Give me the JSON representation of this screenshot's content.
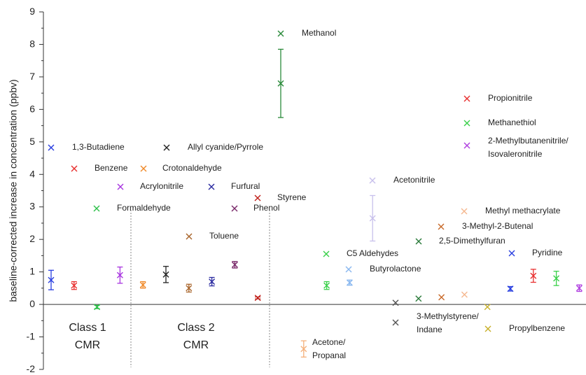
{
  "chart_data": {
    "type": "scatter",
    "y_label": "baseline-corrected increase in concentration (ppbv)",
    "ylim": [
      -2,
      9
    ],
    "yticks": [
      -2,
      -1,
      0,
      1,
      2,
      3,
      4,
      5,
      6,
      7,
      8,
      9
    ],
    "categories": [
      "1,3-Butadiene",
      "Benzene",
      "Formaldehyde",
      "Acrylonitrile",
      "Crotonaldehyde",
      "Allyl cyanide/Pyrrole",
      "Toluene",
      "Furfural",
      "Phenol",
      "Styrene",
      "Methanol",
      "Acetone/\nPropanal",
      "C5 Aldehydes",
      "Butyrolactone",
      "Acetonitrile",
      "3-Methylstyrene/\nIndane",
      "2,5-Dimethylfuran",
      "3-Methyl-2-Butenal",
      "Methyl methacrylate",
      "Propylbenzene",
      "Pyridine",
      "Propionitrile",
      "Methanethiol",
      "2-Methylbutanenitrile/\nIsovaleronitrile"
    ],
    "values": [
      0.75,
      0.58,
      -0.08,
      0.9,
      0.6,
      0.92,
      0.5,
      0.7,
      1.22,
      0.2,
      6.8,
      -1.37,
      0.58,
      0.67,
      2.65,
      0.05,
      0.18,
      0.22,
      0.3,
      -0.08,
      0.48,
      0.88,
      0.8,
      0.5
    ],
    "errors": [
      0.3,
      0.12,
      0.05,
      0.25,
      0.1,
      0.25,
      0.12,
      0.13,
      0.1,
      0.03,
      1.05,
      0.25,
      0.12,
      0.08,
      0.7,
      null,
      null,
      null,
      null,
      null,
      0.07,
      0.2,
      0.22,
      0.1
    ],
    "colors": [
      "#2a3fe0",
      "#e8302f",
      "#2ec04a",
      "#a835e0",
      "#f08a2a",
      "#222222",
      "#a8642a",
      "#2a2aa0",
      "#7a2a6a",
      "#c0201a",
      "#2a8a3a",
      "#f5b07a",
      "#3ad04a",
      "#8ab8f0",
      "#c8c0ec",
      "#555555",
      "#2a7a3a",
      "#c86a2a",
      "#f5b890",
      "#c8b02a",
      "#2a40e0",
      "#e83030",
      "#3ad04a",
      "#b040e0"
    ],
    "annotations": [
      "Class 1\nCMR",
      "Class 2\nCMR"
    ]
  }
}
